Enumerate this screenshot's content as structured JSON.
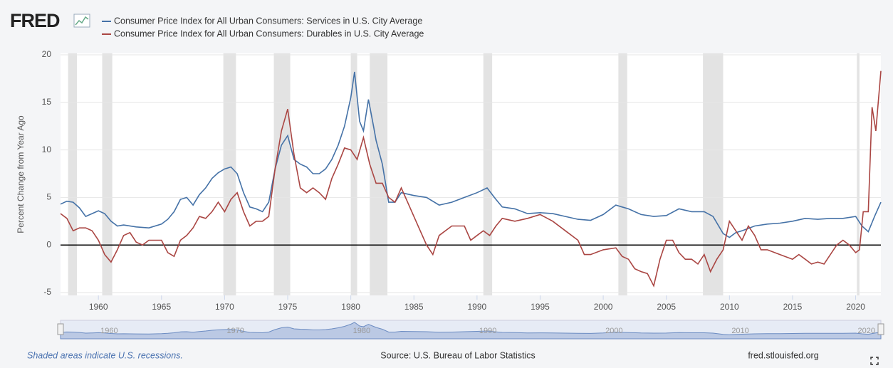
{
  "logo": "FRED",
  "chart_data": {
    "type": "line",
    "y_label": "Percent Change from Year Ago",
    "xlim": [
      1957,
      2022
    ],
    "ylim": [
      -5,
      20
    ],
    "xticks": [
      1960,
      1965,
      1970,
      1975,
      1980,
      1985,
      1990,
      1995,
      2000,
      2005,
      2010,
      2015,
      2020
    ],
    "yticks": [
      -5,
      0,
      5,
      10,
      15,
      20
    ],
    "grid": true,
    "recessions": [
      [
        1957.6,
        1958.3
      ],
      [
        1960.3,
        1961.1
      ],
      [
        1969.9,
        1970.9
      ],
      [
        1973.9,
        1975.2
      ],
      [
        1980.0,
        1980.5
      ],
      [
        1981.5,
        1982.9
      ],
      [
        1990.5,
        1991.2
      ],
      [
        2001.2,
        2001.9
      ],
      [
        2007.9,
        2009.5
      ],
      [
        2020.1,
        2020.3
      ]
    ],
    "navigator_xticks": [
      1960,
      1970,
      1980,
      1990,
      2000,
      2010,
      2020
    ],
    "series": [
      {
        "name": "Consumer Price Index for All Urban Consumers: Services in U.S. City Average",
        "color": "#4572a7",
        "x": [
          1957,
          1957.5,
          1958,
          1958.5,
          1959,
          1959.5,
          1960,
          1960.5,
          1961,
          1961.5,
          1962,
          1963,
          1964,
          1965,
          1965.5,
          1966,
          1966.5,
          1967,
          1967.5,
          1968,
          1968.5,
          1969,
          1969.5,
          1970,
          1970.5,
          1971,
          1971.5,
          1972,
          1972.5,
          1973,
          1973.5,
          1974,
          1974.5,
          1975,
          1975.5,
          1976,
          1976.5,
          1977,
          1977.5,
          1978,
          1978.5,
          1979,
          1979.5,
          1980,
          1980.3,
          1980.7,
          1981,
          1981.4,
          1981.8,
          1982,
          1982.5,
          1983,
          1983.5,
          1984,
          1985,
          1986,
          1987,
          1988,
          1989,
          1990,
          1990.8,
          1991.5,
          1992,
          1993,
          1994,
          1995,
          1996,
          1997,
          1998,
          1999,
          2000,
          2001,
          2001.5,
          2002,
          2003,
          2004,
          2005,
          2006,
          2007,
          2008,
          2008.7,
          2009.5,
          2010,
          2010.5,
          2011,
          2012,
          2013,
          2014,
          2015,
          2016,
          2017,
          2018,
          2019,
          2020,
          2020.5,
          2021,
          2021.5,
          2022
        ],
        "values": [
          4.3,
          4.6,
          4.5,
          3.9,
          3.0,
          3.3,
          3.6,
          3.3,
          2.5,
          2.0,
          2.1,
          1.9,
          1.8,
          2.2,
          2.7,
          3.5,
          4.8,
          5.0,
          4.2,
          5.3,
          6.0,
          7.0,
          7.6,
          8.0,
          8.2,
          7.5,
          5.5,
          4.0,
          3.8,
          3.5,
          4.5,
          8.0,
          10.5,
          11.5,
          9.0,
          8.5,
          8.2,
          7.5,
          7.5,
          8.0,
          9.0,
          10.5,
          12.5,
          15.5,
          18.2,
          13.0,
          12.0,
          15.3,
          12.5,
          11.0,
          8.5,
          4.5,
          4.5,
          5.5,
          5.2,
          5.0,
          4.2,
          4.5,
          5.0,
          5.5,
          6.0,
          4.8,
          4.0,
          3.8,
          3.3,
          3.4,
          3.3,
          3.0,
          2.7,
          2.6,
          3.2,
          4.2,
          4.0,
          3.8,
          3.2,
          3.0,
          3.1,
          3.8,
          3.5,
          3.5,
          3.0,
          1.2,
          0.8,
          1.3,
          1.5,
          2.0,
          2.2,
          2.3,
          2.5,
          2.8,
          2.7,
          2.8,
          2.8,
          3.0,
          2.0,
          1.4,
          3.0,
          4.5
        ]
      },
      {
        "name": "Consumer Price Index for All Urban Consumers: Durables in U.S. City Average",
        "color": "#aa4643",
        "x": [
          1957,
          1957.5,
          1958,
          1958.5,
          1959,
          1959.5,
          1960,
          1960.5,
          1961,
          1961.5,
          1962,
          1962.5,
          1963,
          1963.5,
          1964,
          1965,
          1965.5,
          1966,
          1966.5,
          1967,
          1967.5,
          1968,
          1968.5,
          1969,
          1969.5,
          1970,
          1970.5,
          1971,
          1971.5,
          1972,
          1972.5,
          1973,
          1973.5,
          1974,
          1974.5,
          1975,
          1975.5,
          1976,
          1976.5,
          1977,
          1977.5,
          1978,
          1978.5,
          1979,
          1979.5,
          1980,
          1980.5,
          1981,
          1981.5,
          1982,
          1982.5,
          1983,
          1983.5,
          1984,
          1984.5,
          1985,
          1985.5,
          1986,
          1986.5,
          1987,
          1988,
          1989,
          1989.5,
          1990,
          1990.5,
          1991,
          1991.5,
          1992,
          1993,
          1994,
          1995,
          1996,
          1997,
          1998,
          1998.5,
          1999,
          2000,
          2001,
          2001.5,
          2002,
          2002.5,
          2003,
          2003.5,
          2004,
          2004.5,
          2005,
          2005.5,
          2006,
          2006.5,
          2007,
          2007.5,
          2008,
          2008.5,
          2009,
          2009.5,
          2010,
          2010.5,
          2011,
          2011.5,
          2012,
          2012.5,
          2013,
          2014,
          2015,
          2015.5,
          2016,
          2016.5,
          2017,
          2017.5,
          2018,
          2018.5,
          2019,
          2019.5,
          2020,
          2020.3,
          2020.6,
          2021,
          2021.3,
          2021.6,
          2022
        ],
        "values": [
          3.3,
          2.8,
          1.5,
          1.8,
          1.8,
          1.5,
          0.5,
          -1.0,
          -1.8,
          -0.5,
          1.0,
          1.3,
          0.3,
          0.0,
          0.5,
          0.5,
          -0.8,
          -1.2,
          0.5,
          1.0,
          1.8,
          3.0,
          2.8,
          3.5,
          4.5,
          3.5,
          4.8,
          5.5,
          3.5,
          2.0,
          2.5,
          2.5,
          3.0,
          8.0,
          12.0,
          14.3,
          9.5,
          6.0,
          5.5,
          6.0,
          5.5,
          4.8,
          7.0,
          8.5,
          10.2,
          10.0,
          9.0,
          11.3,
          8.5,
          6.5,
          6.5,
          5.0,
          4.5,
          6.0,
          4.5,
          3.0,
          1.5,
          0.0,
          -1.0,
          1.0,
          2.0,
          2.0,
          0.5,
          1.0,
          1.5,
          1.0,
          2.0,
          2.8,
          2.5,
          2.8,
          3.2,
          2.5,
          1.5,
          0.5,
          -1.0,
          -1.0,
          -0.5,
          -0.3,
          -1.2,
          -1.5,
          -2.5,
          -2.8,
          -3.0,
          -4.3,
          -1.5,
          0.5,
          0.5,
          -0.8,
          -1.5,
          -1.5,
          -2.0,
          -1.0,
          -2.8,
          -1.5,
          -0.5,
          2.5,
          1.5,
          0.5,
          2.0,
          1.0,
          -0.5,
          -0.5,
          -1.0,
          -1.5,
          -1.0,
          -1.5,
          -2.0,
          -1.8,
          -2.0,
          -1.0,
          0.0,
          0.5,
          0.0,
          -0.8,
          -0.5,
          3.5,
          3.5,
          14.5,
          12.0,
          18.3
        ]
      }
    ],
    "footer_left": "Shaded areas indicate U.S. recessions.",
    "source": "Source: U.S. Bureau of Labor Statistics",
    "footer_right": "fred.stlouisfed.org"
  }
}
